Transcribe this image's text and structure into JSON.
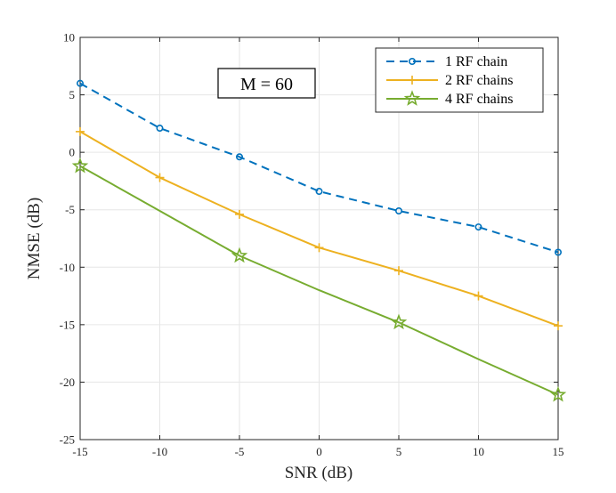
{
  "chart_data": {
    "type": "line",
    "title": "",
    "xlabel": "SNR (dB)",
    "ylabel": "NMSE (dB)",
    "xlim": [
      -15,
      15
    ],
    "ylim": [
      -25,
      10
    ],
    "xticks": [
      -15,
      -10,
      -5,
      0,
      5,
      10,
      15
    ],
    "yticks": [
      -25,
      -20,
      -15,
      -10,
      -5,
      0,
      5,
      10
    ],
    "xtick_labels": [
      "-15",
      "-10",
      "-5",
      "0",
      "5",
      "10",
      "15"
    ],
    "ytick_labels": [
      "-25",
      "-20",
      "-15",
      "-10",
      "-5",
      "0",
      "5",
      "10"
    ],
    "grid": true,
    "legend_position": "top-right",
    "annotation": "M = 60",
    "series": [
      {
        "name": "1 RF chain",
        "color": "#0072BD",
        "line_style": "dashed",
        "marker": "circle",
        "x": [
          -15,
          -10,
          -5,
          0,
          5,
          10,
          15
        ],
        "y": [
          6.0,
          2.1,
          -0.4,
          -3.4,
          -5.1,
          -6.5,
          -8.7
        ],
        "marker_x": [
          -15,
          -10,
          -5,
          0,
          5,
          10,
          15
        ]
      },
      {
        "name": "2 RF chains",
        "color": "#EDB120",
        "line_style": "solid",
        "marker": "plus",
        "x": [
          -15,
          -10,
          -5,
          0,
          5,
          10,
          15
        ],
        "y": [
          1.8,
          -2.2,
          -5.4,
          -8.3,
          -10.3,
          -12.5,
          -15.1
        ],
        "marker_x": [
          -15,
          -10,
          -5,
          0,
          5,
          10,
          15
        ]
      },
      {
        "name": "4 RF chains",
        "color": "#77AC30",
        "line_style": "solid",
        "marker": "star",
        "x": [
          -15,
          -10,
          -5,
          0,
          5,
          10,
          15
        ],
        "y": [
          -1.2,
          -5.1,
          -9.0,
          -12.0,
          -14.8,
          -18.0,
          -21.1
        ],
        "marker_x": [
          -15,
          -5,
          5,
          15
        ]
      }
    ]
  }
}
